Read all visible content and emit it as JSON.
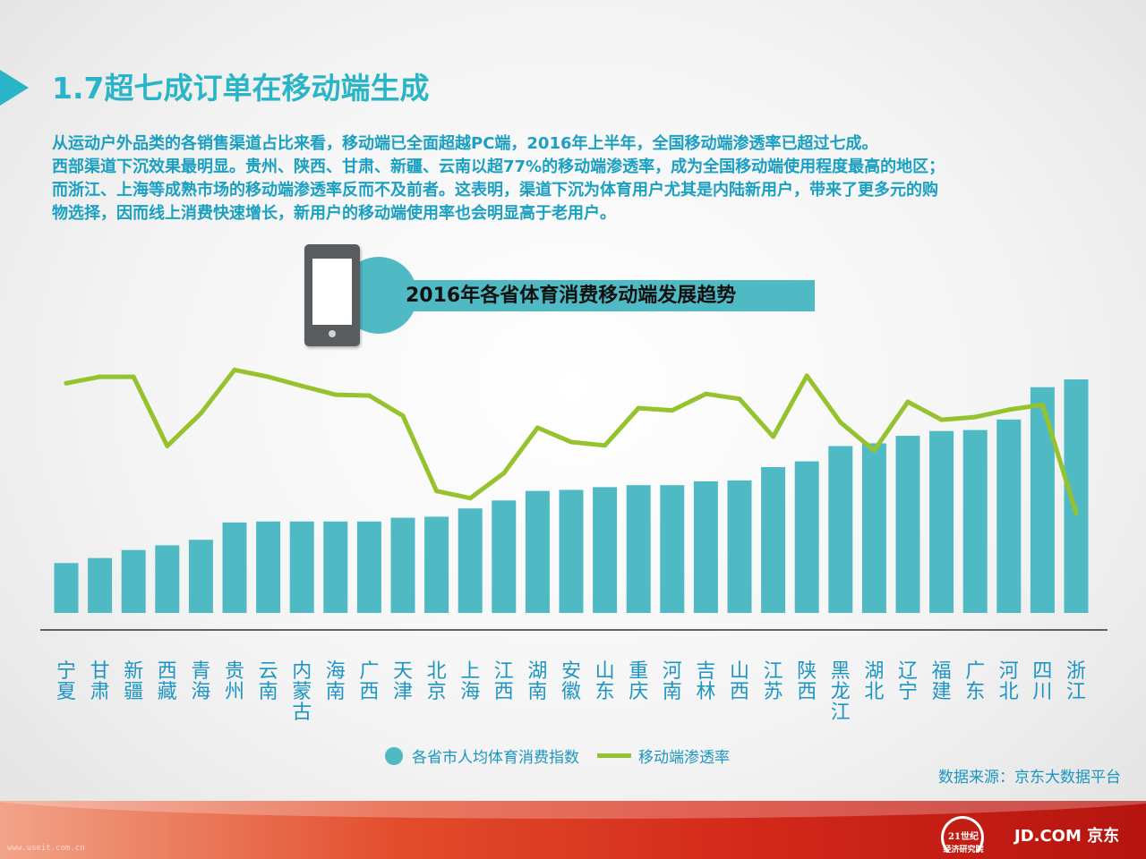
{
  "title": "1.7超七成订单在移动端生成",
  "paragraph": [
    "从运动户外品类的各销售渠道占比来看，移动端已全面超越PC端，2016年上半年，全国移动端渗透率已超过七成。",
    "西部渠道下沉效果最明显。贵州、陕西、甘肃、新疆、云南以超77%的移动端渗透率，成为全国移动端使用程度最高的地区；",
    "而浙江、上海等成熟市场的移动端渗透率反而不及前者。这表明，渠道下沉为体育用户尤其是内陆新用户，带来了更多元的购",
    "物选择，因而线上消费快速增长，新用户的移动端使用率也会明显高于老用户。"
  ],
  "banner_title": "2016年各省体育消费移动端发展趋势",
  "legend": {
    "bars": "各省市人均体育消费指数",
    "line": "移动端渗透率"
  },
  "source": "数据来源：京东大数据平台",
  "footer": {
    "url": "www.useit.com.cn",
    "logo1_line1": "21世纪",
    "logo1_line2": "经济研究院",
    "logo2": "JD.COM 京东"
  },
  "colors": {
    "bar": "#4fbac4",
    "line": "#96c22d",
    "accent": "#29b5c7",
    "text": "#1d95c2"
  },
  "chart_data": {
    "type": "bar",
    "title": "2016年各省体育消费移动端发展趋势",
    "categories": [
      "宁夏",
      "甘肃",
      "新疆",
      "西藏",
      "青海",
      "贵州",
      "云南",
      "内蒙古",
      "海南",
      "广西",
      "天津",
      "北京",
      "上海",
      "江西",
      "湖南",
      "安徽",
      "山东",
      "重庆",
      "河南",
      "吉林",
      "山西",
      "江苏",
      "陕西",
      "黑龙江",
      "湖北",
      "辽宁",
      "福建",
      "广东",
      "河北",
      "四川",
      "浙江"
    ],
    "series": [
      {
        "name": "各省市人均体育消费指数",
        "type": "bar",
        "values": [
          19.9,
          21.9,
          25.1,
          27.0,
          29.2,
          36.1,
          36.5,
          36.5,
          36.5,
          36.5,
          38.0,
          38.4,
          41.7,
          44.9,
          48.7,
          49.1,
          50.2,
          51.0,
          51.0,
          52.5,
          52.9,
          58.2,
          60.5,
          66.6,
          67.7,
          70.7,
          72.6,
          73.0,
          77.2,
          90.1,
          93.2
        ]
      },
      {
        "name": "移动端渗透率",
        "type": "line",
        "values": [
          88.7,
          91.8,
          91.8,
          58.6,
          74.3,
          95.1,
          91.8,
          87.4,
          83.2,
          82.8,
          73.1,
          37.0,
          33.6,
          45.6,
          67.4,
          60.5,
          58.9,
          76.8,
          75.7,
          83.6,
          81.2,
          63.1,
          92.3,
          69.9,
          56.5,
          79.8,
          71.2,
          72.5,
          76.0,
          78.4,
          26.5
        ]
      }
    ]
  }
}
